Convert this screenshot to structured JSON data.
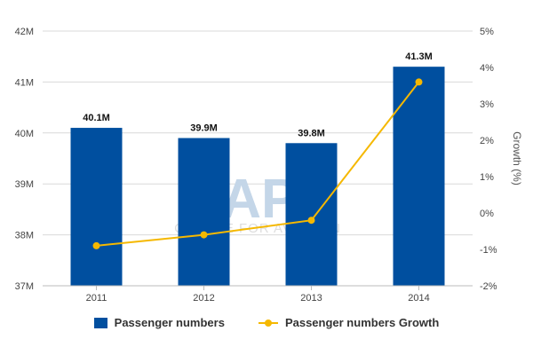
{
  "chart_data": {
    "type": "bar",
    "categories": [
      "2011",
      "2012",
      "2013",
      "2014"
    ],
    "series": [
      {
        "name": "Passenger numbers",
        "type": "bar",
        "axis": "left",
        "values": [
          40.1,
          39.9,
          39.8,
          41.3
        ],
        "data_labels": [
          "40.1M",
          "39.9M",
          "39.8M",
          "41.3M"
        ],
        "color": "#004f9f"
      },
      {
        "name": "Passenger numbers Growth",
        "type": "line",
        "axis": "right",
        "values": [
          -0.9,
          -0.6,
          -0.2,
          3.6
        ],
        "color": "#f5b800"
      }
    ],
    "y_left": {
      "lim": [
        37,
        42
      ],
      "ticks": [
        37,
        38,
        39,
        40,
        41,
        42
      ],
      "tick_labels": [
        "37M",
        "38M",
        "39M",
        "40M",
        "41M",
        "42M"
      ]
    },
    "y_right": {
      "lim": [
        -2,
        5
      ],
      "ticks": [
        -2,
        -1,
        0,
        1,
        2,
        3,
        4,
        5
      ],
      "tick_labels": [
        "-2%",
        "-1%",
        "0%",
        "1%",
        "2%",
        "3%",
        "4%",
        "5%"
      ],
      "label": "Growth (%)"
    },
    "grid": true,
    "legend": "bottom-center"
  },
  "watermark": {
    "main": "CAPA",
    "sub": "CENTRE FOR AVIATION"
  }
}
